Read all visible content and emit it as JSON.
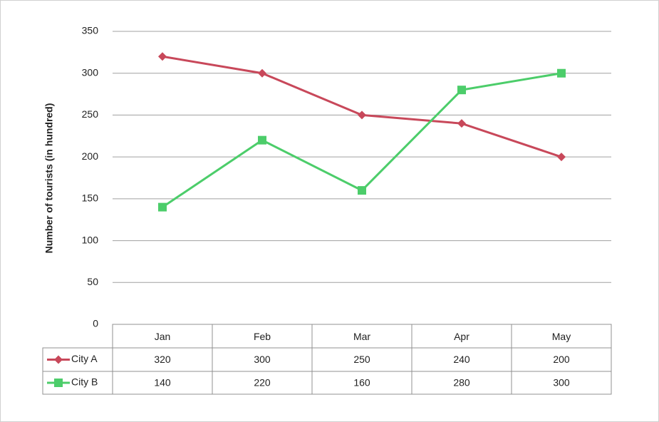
{
  "chart_data": {
    "type": "line",
    "y_label": "Number of tourists (in hundred)",
    "categories": [
      "Jan",
      "Feb",
      "Mar",
      "Apr",
      "May"
    ],
    "series": [
      {
        "name": "City A",
        "color": "#c8485a",
        "marker": "diamond",
        "values": [
          320,
          300,
          250,
          240,
          200
        ]
      },
      {
        "name": "City B",
        "color": "#4ccd6a",
        "marker": "square",
        "values": [
          140,
          220,
          160,
          280,
          300
        ]
      }
    ],
    "ylim": [
      0,
      350
    ],
    "yticks": [
      0,
      50,
      100,
      150,
      200,
      250,
      300,
      350
    ],
    "grid": true,
    "data_table": true
  }
}
